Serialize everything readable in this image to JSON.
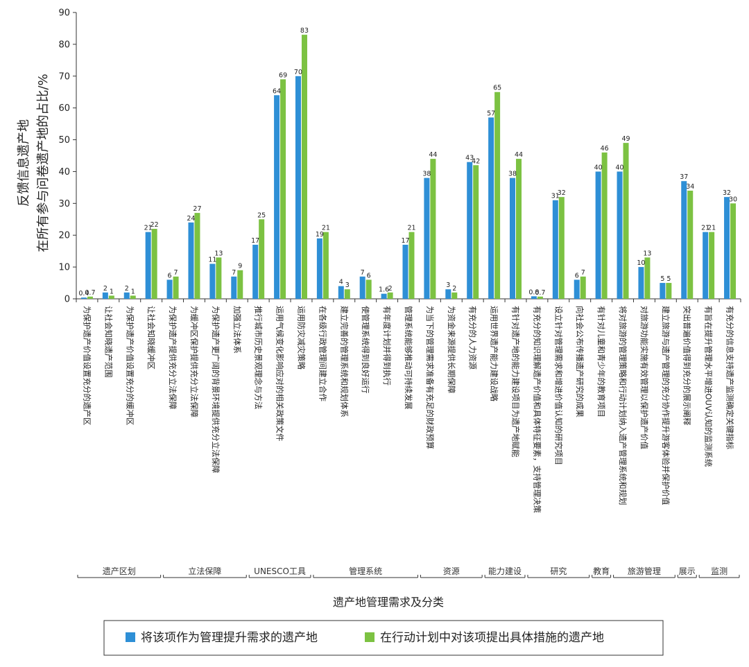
{
  "chart_data": {
    "type": "bar",
    "ylabel_lines": [
      "反馈信息遗产地",
      "在所有参与问卷遗产地的占比/%"
    ],
    "xlabel": "遗产地管理需求及分类",
    "ylim": [
      0,
      90
    ],
    "yticks": [
      0,
      10,
      20,
      30,
      40,
      50,
      60,
      70,
      80,
      90
    ],
    "grid": false,
    "legend_position": "bottom",
    "categories": [
      "为保护遗产价值设置充分的遗产区",
      "让社会知晓遗产范围",
      "为保护遗产价值设置充分的缓冲区",
      "让社会知晓缓冲区",
      "为保护遗产提供充分立法保障",
      "为缓冲区保护提供充分立法保障",
      "为保护遗产更广阔的背景环境提供充分立法保障",
      "加强立法体系",
      "推行城市历史景观理念与方法",
      "运用气候变化影响应对的相关政策文件",
      "运用防灾减灾策略",
      "在各级行政管理间建立合作",
      "建立完善的管理系统和规划体系",
      "使管理系统得到良好运行",
      "有年度计划并得到执行",
      "管理系统能够推动可持续发展",
      "为当下的管理需求准备有充足的财政预算",
      "为资金来源提供长期保障",
      "有充分的人力资源",
      "运用世界遗产能力建设战略",
      "有针对遗产地的能力建设项目为遗产地赋能",
      "有充分的知识理解遗产价值和具体特征要素，支持管理决策",
      "设立针对管理需求和增进价值认知的研究项目",
      "向社会公布传播遗产研究的成果",
      "有针对儿童和青少年的教育项目",
      "将对旅游的管理策略和行动计划纳入遗产管理系统和规划",
      "对旅游功能实施有效管理以保护遗产价值",
      "建立旅游与遗产管理的充分协作提升游客体验并保护价值",
      "突出普遍价值得到充分的展示阐释",
      "有旨在提升管理水平增进OUV认知的监测系统",
      "有充分的信息支持遗产监测确定关键指标"
    ],
    "series": [
      {
        "name": "将该项作为管理提升需求的遗产地",
        "color": "#2e8fd6",
        "values": [
          0.4,
          2,
          2,
          21,
          6,
          24,
          11,
          7,
          17,
          64,
          70,
          19,
          4,
          7,
          1.6,
          17,
          38,
          3,
          43,
          57,
          38,
          0.8,
          31,
          6,
          40,
          40,
          10,
          5,
          37,
          21,
          32
        ],
        "labels": [
          "0.4",
          "2",
          "2",
          "21",
          "6",
          "24",
          "11",
          "7",
          "17",
          "64",
          "70",
          "19",
          "4",
          "7",
          "1.6",
          "17",
          "38",
          "3",
          "43",
          "57",
          "38",
          "0.8",
          "31",
          "6",
          "40",
          "40",
          "10",
          "5",
          "37",
          "21",
          "32"
        ]
      },
      {
        "name": "在行动计划中对该项提出具体措施的遗产地",
        "color": "#7cc242",
        "values": [
          0.7,
          1,
          1,
          22,
          7,
          27,
          13,
          9,
          25,
          69,
          83,
          21,
          3,
          6,
          2,
          21,
          44,
          2,
          42,
          65,
          44,
          0.7,
          32,
          7,
          46,
          49,
          13,
          5,
          34,
          21,
          30
        ],
        "labels": [
          "0.7",
          "1",
          "1",
          "22",
          "7",
          "27",
          "13",
          "9",
          "25",
          "69",
          "83",
          "21",
          "3",
          "6",
          "2",
          "21",
          "44",
          "2",
          "42",
          "65",
          "44",
          "0.7",
          "32",
          "7",
          "46",
          "49",
          "13",
          "5",
          "34",
          "21",
          "30"
        ]
      }
    ],
    "groups": [
      {
        "name": "遗产区划",
        "start": 0,
        "end": 3
      },
      {
        "name": "立法保障",
        "start": 4,
        "end": 7
      },
      {
        "name": "UNESCO工具",
        "start": 8,
        "end": 10
      },
      {
        "name": "管理系统",
        "start": 11,
        "end": 15
      },
      {
        "name": "资源",
        "start": 16,
        "end": 18
      },
      {
        "name": "能力建设",
        "start": 19,
        "end": 20
      },
      {
        "name": "研究",
        "start": 21,
        "end": 23
      },
      {
        "name": "教育",
        "start": 24,
        "end": 24
      },
      {
        "name": "旅游管理",
        "start": 25,
        "end": 27
      },
      {
        "name": "展示",
        "start": 28,
        "end": 28
      },
      {
        "name": "监测",
        "start": 29,
        "end": 30
      }
    ]
  }
}
